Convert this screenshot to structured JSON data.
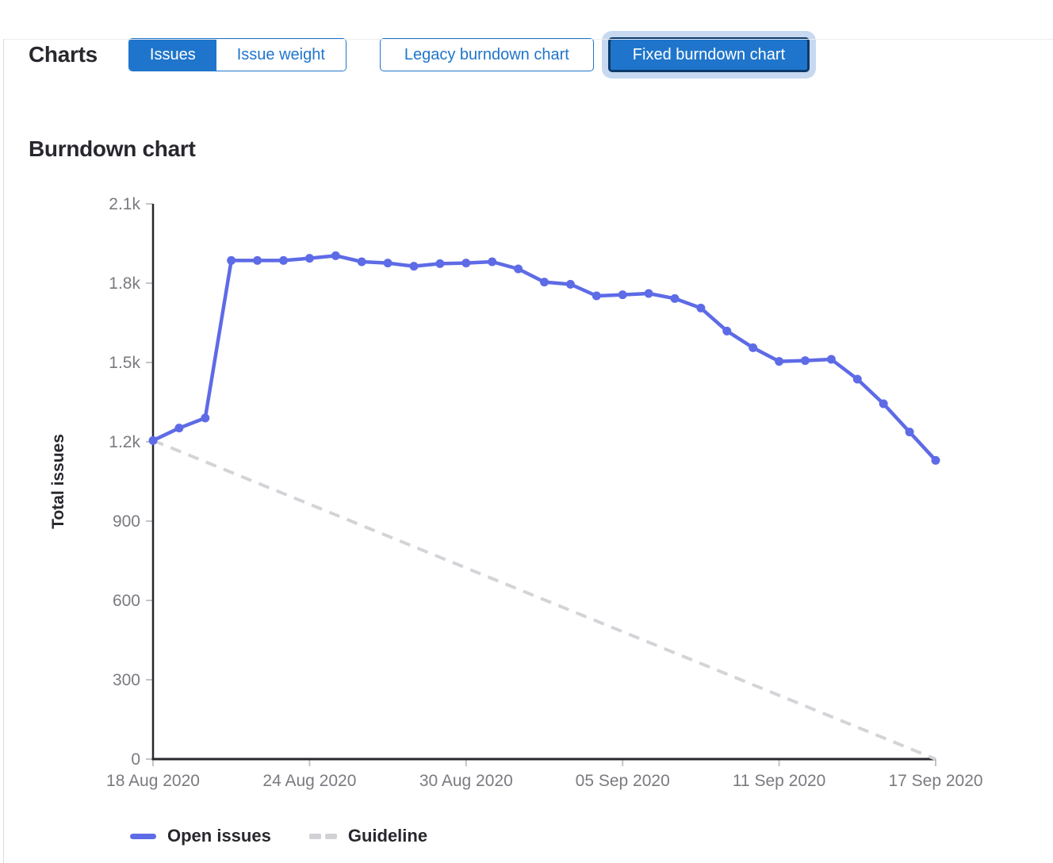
{
  "page": {
    "section_label": "Charts",
    "title": "Burndown chart"
  },
  "toggles": {
    "metric": [
      {
        "label": "Issues",
        "selected": true
      },
      {
        "label": "Issue weight",
        "selected": false
      }
    ],
    "chart_version": [
      {
        "label": "Legacy burndown chart",
        "selected": false
      },
      {
        "label": "Fixed burndown chart",
        "selected": true,
        "focused": true
      }
    ]
  },
  "legend": [
    {
      "label": "Open issues",
      "swatch": "solid-line",
      "color": "#5e6be6"
    },
    {
      "label": "Guideline",
      "swatch": "dashed-line",
      "color": "#d2d2d6"
    }
  ],
  "colors": {
    "accent_blue": "#1f75cb",
    "focus_ring": "#c7d9f1",
    "focus_border": "#0d3a6a",
    "open_issues_line": "#5e6be6",
    "guideline_gray": "#d4d4d8",
    "axis": "#28272d",
    "tick": "#c4c4c8",
    "tick_label": "#7a7a80"
  },
  "chart_data": {
    "type": "line",
    "title": "Burndown chart",
    "xlabel": "",
    "ylabel": "Total issues",
    "ylim": [
      0,
      2100
    ],
    "y_tick_values": [
      0,
      300,
      600,
      900,
      1200,
      1500,
      1800,
      2100
    ],
    "y_tick_labels": [
      "0",
      "300",
      "600",
      "900",
      "1.2k",
      "1.5k",
      "1.8k",
      "2.1k"
    ],
    "x_range_days": 30,
    "x_tick_day_index": [
      0,
      6,
      12,
      18,
      24,
      30
    ],
    "x_tick_labels": [
      "18 Aug 2020",
      "24 Aug 2020",
      "30 Aug 2020",
      "05 Sep 2020",
      "11 Sep 2020",
      "17 Sep 2020"
    ],
    "grid": false,
    "legend_position": "bottom",
    "series": [
      {
        "name": "Open issues",
        "type": "line",
        "style": "solid",
        "color": "#5e6be6",
        "cadence": "daily from 18 Aug 2020",
        "values": [
          1205,
          1252,
          1290,
          1886,
          1886,
          1886,
          1894,
          1904,
          1881,
          1876,
          1864,
          1874,
          1876,
          1881,
          1854,
          1804,
          1796,
          1752,
          1756,
          1761,
          1742,
          1706,
          1619,
          1556,
          1504,
          1507,
          1512,
          1437,
          1344,
          1237,
          1130
        ]
      },
      {
        "name": "Guideline",
        "type": "line",
        "style": "dashed",
        "color": "#d4d4d8",
        "x_days": [
          0,
          30
        ],
        "values": [
          1205,
          0
        ]
      }
    ]
  }
}
